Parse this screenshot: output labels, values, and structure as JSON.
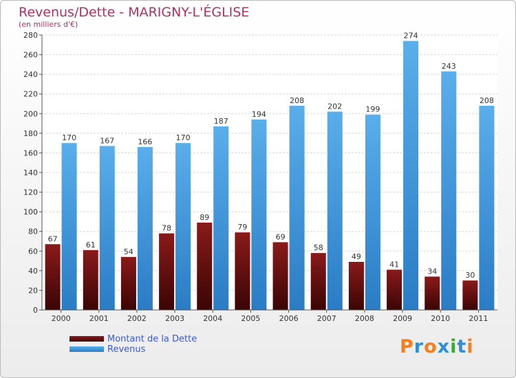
{
  "title": "Revenus/Dette - MARIGNY-L'ÉGLISE",
  "subtitle": "(en milliers d'€)",
  "colors": {
    "title": "#b0306a",
    "dette": "#6b0f0f",
    "revenus": "#4d9fe0",
    "legend_text": "#3b5bd6"
  },
  "logo": {
    "text": "Proxiti",
    "letter_colors": [
      "#f08020",
      "#2e8ed8",
      "#f08020",
      "#2e8ed8",
      "#3aaa35",
      "#2e8ed8",
      "#f08020"
    ]
  },
  "chart_data": {
    "type": "bar",
    "title": "Revenus/Dette - MARIGNY-L'ÉGLISE",
    "ylabel": "(en milliers d'€)",
    "xlabel": "",
    "ylim": [
      0,
      280
    ],
    "yticks": [
      0,
      20,
      40,
      60,
      80,
      100,
      120,
      140,
      160,
      180,
      200,
      220,
      240,
      260,
      280
    ],
    "grid": true,
    "legend_position": "bottom-left",
    "categories": [
      "2000",
      "2001",
      "2002",
      "2003",
      "2004",
      "2005",
      "2006",
      "2007",
      "2008",
      "2009",
      "2010",
      "2011"
    ],
    "series": [
      {
        "name": "Montant de la Dette",
        "values": [
          67,
          61,
          54,
          78,
          89,
          79,
          69,
          58,
          49,
          41,
          34,
          30
        ]
      },
      {
        "name": "Revenus",
        "values": [
          170,
          167,
          166,
          170,
          187,
          194,
          208,
          202,
          199,
          274,
          243,
          208
        ]
      }
    ]
  }
}
